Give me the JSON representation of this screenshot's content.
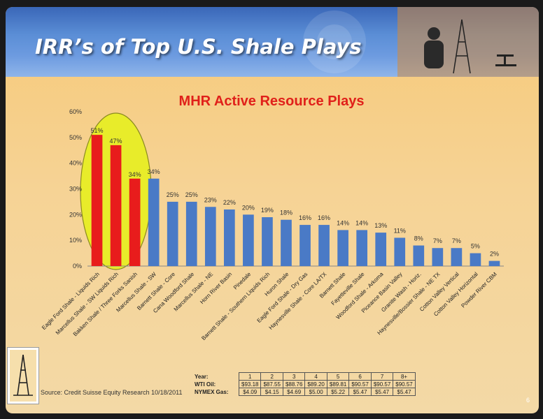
{
  "slide": {
    "banner_title": "IRR’s of Top U.S. Shale Plays",
    "source": "Source: Credit Suisse Equity Research 10/18/2011",
    "page_number": "6",
    "colors": {
      "highlight_bar": "#e81c1c",
      "normal_bar": "#4a7ac6",
      "ellipse": "#e8ec2a",
      "title": "#e0201a"
    }
  },
  "chart_data": {
    "type": "bar",
    "title": "MHR Active Resource Plays",
    "ylim": [
      0,
      60
    ],
    "yticks": [
      "0%",
      "10%",
      "20%",
      "30%",
      "40%",
      "50%",
      "60%"
    ],
    "grid": false,
    "categories": [
      "Eagle Ford Shale - Liquids Rich",
      "Marcellus Shale - SW Liquids Rich",
      "Bakken Shale / Three Forks Sanish",
      "Marcellus Shale - SW",
      "Barnett Shale - Core",
      "Cana Woodford Shale",
      "Marcellus Shale - NE",
      "Horn River Basin",
      "Pinedale",
      "Barnett Shale - Southern Liquids Rich",
      "Huron Shale",
      "Eagle Ford Shale - Dry Gas",
      "Haynesville Shale - Core LA/TX",
      "Barnett Shale",
      "Fayetteville Shale",
      "Woodford Shale - Arkoma",
      "Piceance Basin Valley",
      "Granite Wash - Horiz.",
      "Haynesville/Bossier Shale - NE TX",
      "Cotton Valley Vertical",
      "Cotton Valley Horizontal",
      "Powder River CBM"
    ],
    "values": [
      51,
      47,
      34,
      34,
      25,
      25,
      23,
      22,
      20,
      19,
      18,
      16,
      16,
      14,
      14,
      13,
      11,
      8,
      7,
      7,
      5,
      2
    ],
    "labels": [
      "51%",
      "47%",
      "34%",
      "34%",
      "25%",
      "25%",
      "23%",
      "22%",
      "20%",
      "19%",
      "18%",
      "16%",
      "16%",
      "14%",
      "14%",
      "13%",
      "11%",
      "8%",
      "7%",
      "7%",
      "5%",
      "2%"
    ],
    "highlighted_count": 3
  },
  "price_table": {
    "headers": [
      "Year:",
      "1",
      "2",
      "3",
      "4",
      "5",
      "6",
      "7",
      "8+"
    ],
    "rows": [
      {
        "label": "WTI Oil:",
        "cells": [
          "$93.18",
          "$87.55",
          "$88.76",
          "$89.20",
          "$89.81",
          "$90.57",
          "$90.57",
          "$90.57"
        ]
      },
      {
        "label": "NYMEX Gas:",
        "cells": [
          "$4.09",
          "$4.15",
          "$4.69",
          "$5.00",
          "$5.22",
          "$5.47",
          "$5.47",
          "$5.47"
        ]
      }
    ]
  }
}
